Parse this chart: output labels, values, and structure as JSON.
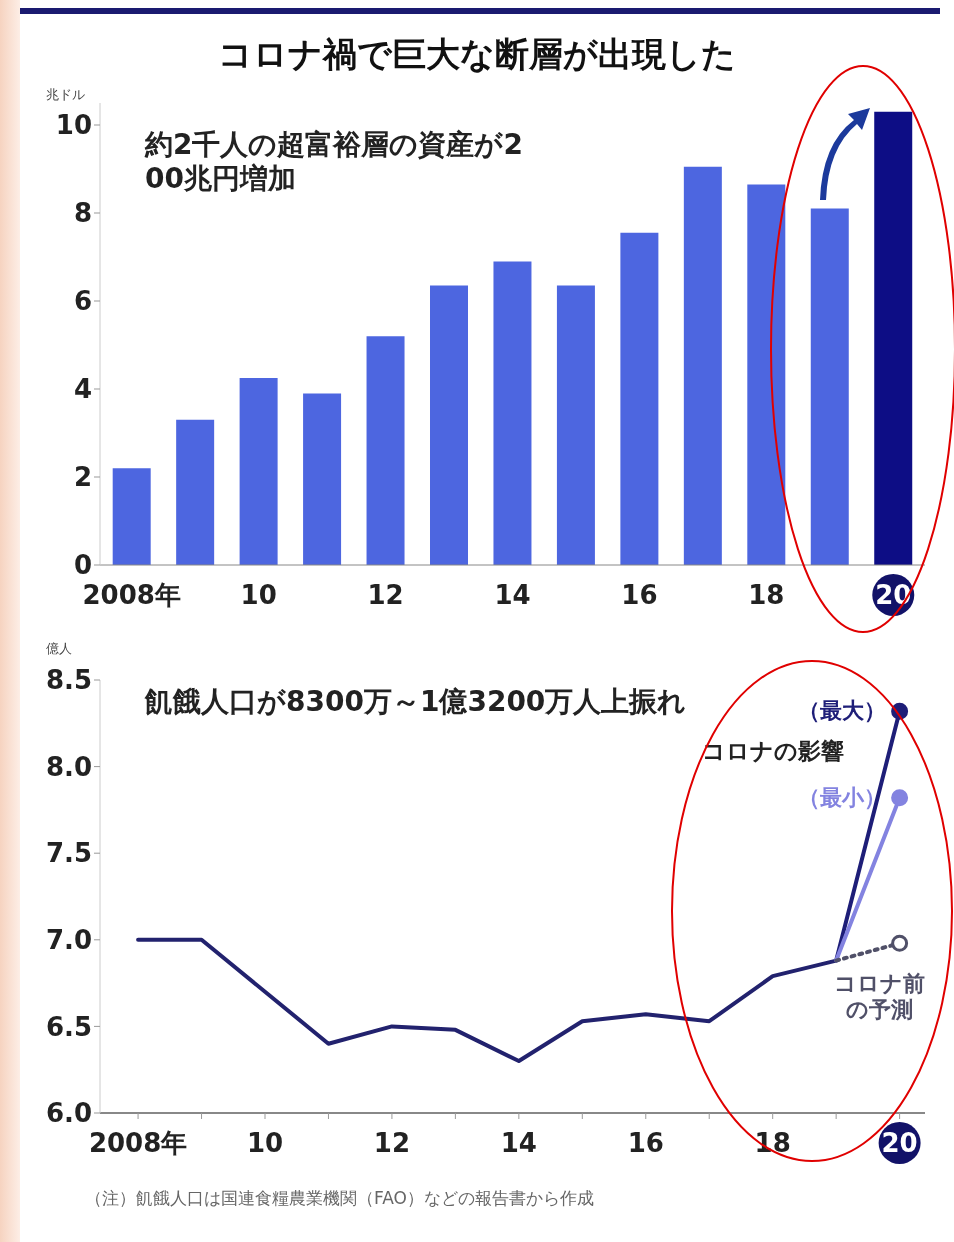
{
  "chart_data": [
    {
      "type": "bar",
      "title": "コロナ禍で巨大な断層が出現した",
      "ylabel": "兆ドル",
      "annotations": [
        "約2千人の超富裕層の資産が200兆円増加"
      ],
      "categories": [
        "2008年",
        null,
        "10",
        null,
        "12",
        null,
        "14",
        null,
        "16",
        null,
        "18",
        null,
        "20"
      ],
      "values": [
        2.2,
        3.3,
        4.25,
        3.9,
        5.2,
        6.35,
        6.9,
        6.35,
        7.55,
        9.05,
        8.65,
        8.1,
        10.3
      ],
      "colors": [
        "#4d66e0",
        "#4d66e0",
        "#4d66e0",
        "#4d66e0",
        "#4d66e0",
        "#4d66e0",
        "#4d66e0",
        "#4d66e0",
        "#4d66e0",
        "#4d66e0",
        "#4d66e0",
        "#4d66e0",
        "#0d0d85"
      ],
      "ylim": [
        0,
        10.5
      ],
      "yticks": [
        0,
        2,
        4,
        6,
        8,
        10
      ],
      "legend": false,
      "grid": false
    },
    {
      "type": "line",
      "ylabel": "億人",
      "annotations": [
        "飢餓人口が8300万～1億3200万人上振れ",
        "コロナの影響",
        "（注）飢餓人口は国連食糧農業機関（FAO）などの報告書から作成"
      ],
      "series": [
        {
          "color": "#22226e",
          "x": [
            2008,
            2009,
            2010,
            2011,
            2012,
            2013,
            2014,
            2015,
            2016,
            2017,
            2018,
            2019
          ],
          "values": [
            7.0,
            7.0,
            6.7,
            6.4,
            6.5,
            6.48,
            6.3,
            6.53,
            6.57,
            6.53,
            6.79,
            6.88
          ],
          "marker": "none",
          "line_style": "solid"
        },
        {
          "name": "（最大）",
          "color": "#1e1e78",
          "x": [
            2019,
            2020
          ],
          "values": [
            6.88,
            8.32
          ],
          "marker": "circle",
          "line_style": "solid"
        },
        {
          "name": "（最小）",
          "color": "#8383e0",
          "x": [
            2019,
            2020
          ],
          "values": [
            6.88,
            7.82
          ],
          "marker": "circle",
          "line_style": "solid"
        },
        {
          "name": "コロナ前の予測",
          "color": "#505068",
          "x": [
            2019,
            2020
          ],
          "values": [
            6.88,
            6.98
          ],
          "marker": "circle",
          "line_style": "dotted"
        }
      ],
      "xlim": [
        2007.4,
        2020.4
      ],
      "xticks": [
        {
          "value": 2008,
          "label": "2008年"
        },
        {
          "value": 2009,
          "label": null
        },
        {
          "value": 2010,
          "label": "10"
        },
        {
          "value": 2011,
          "label": null
        },
        {
          "value": 2012,
          "label": "12"
        },
        {
          "value": 2013,
          "label": null
        },
        {
          "value": 2014,
          "label": "14"
        },
        {
          "value": 2015,
          "label": null
        },
        {
          "value": 2016,
          "label": "16"
        },
        {
          "value": 2017,
          "label": null
        },
        {
          "value": 2018,
          "label": "18"
        },
        {
          "value": 2019,
          "label": null
        },
        {
          "value": 2020,
          "label": "20"
        }
      ],
      "ylim": [
        6,
        8.5
      ],
      "yticks": [
        {
          "value": 6,
          "label": "6.0"
        },
        {
          "value": 6.5,
          "label": "6.5"
        },
        {
          "value": 7,
          "label": "7.0"
        },
        {
          "value": 7.5,
          "label": "7.5"
        },
        {
          "value": 8,
          "label": "8.0"
        },
        {
          "value": 8.5,
          "label": "8.5"
        }
      ],
      "legend": false,
      "grid": false
    }
  ]
}
